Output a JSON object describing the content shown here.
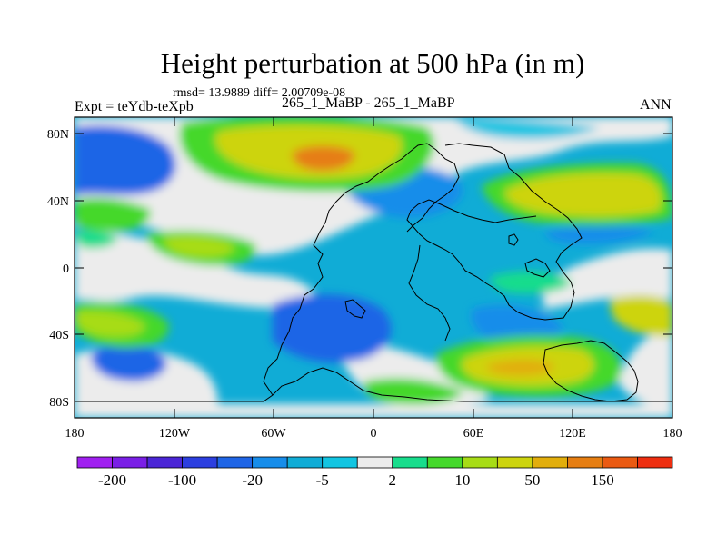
{
  "title": "Height perturbation at 500 hPa (in m)",
  "subtitle": "rmsd= 13.9889 diff= 2.00709e-08",
  "left_label": "Expt = teYdb-teXpb",
  "center_label": "265_1_MaBP - 265_1_MaBP",
  "right_label": "ANN",
  "lat_ticks": [
    "80N",
    "40N",
    "0",
    "40S",
    "80S"
  ],
  "lon_ticks": [
    "180",
    "120W",
    "60W",
    "0",
    "60E",
    "120E",
    "180"
  ],
  "colorbar": {
    "colors": [
      "#a020f0",
      "#7a1fe6",
      "#4b26d6",
      "#2c3fe0",
      "#1f65e6",
      "#178dea",
      "#10acd6",
      "#12c5e2",
      "#ececec",
      "#18dd8c",
      "#45d82c",
      "#a7dc16",
      "#cdd40e",
      "#e2ae0c",
      "#e67e12",
      "#ea5a12",
      "#ee2e10"
    ],
    "labels": [
      "-200",
      "-100",
      "-20",
      "-5",
      "2",
      "10",
      "50",
      "150"
    ]
  },
  "field_colors": {
    "neutral": "#ececec",
    "deep_blue": "#1f65e6",
    "mid_blue": "#178dea",
    "light_blue": "#10acd6",
    "cyan": "#12c5e2",
    "teal_green": "#18dd8c",
    "green": "#45d82c",
    "yellow_green": "#a7dc16",
    "yellow": "#cdd40e",
    "orange": "#e2ae0c",
    "dark_orange": "#e67e12"
  }
}
